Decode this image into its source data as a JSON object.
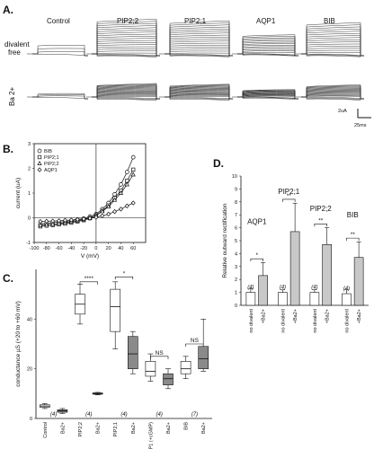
{
  "panel_a": {
    "label": "A.",
    "columns": [
      {
        "name": "Control",
        "amp": 0.25,
        "sweeps": 4
      },
      {
        "name": "PIP2;2",
        "amp": 1.0,
        "sweeps": 20
      },
      {
        "name": "PIP2;1",
        "amp": 0.95,
        "sweeps": 20
      },
      {
        "name": "AQP1",
        "amp": 0.55,
        "sweeps": 16
      },
      {
        "name": "BIB",
        "amp": 0.9,
        "sweeps": 18
      }
    ],
    "rows": [
      {
        "name": "divalent free",
        "line1": "divalent",
        "line2": "free",
        "scale": 1.0
      },
      {
        "name": "Ba2+",
        "label": "Ba 2+",
        "scale": 0.75
      }
    ],
    "scalebar": {
      "current": "2uA",
      "time": "25ms"
    }
  },
  "panel_b": {
    "label": "B.",
    "chart_data": {
      "type": "line",
      "xlabel": "V (mV)",
      "ylabel": "current (uA)",
      "xlim": [
        -100,
        80
      ],
      "ylim": [
        -1,
        3
      ],
      "xticks": [
        -100,
        -80,
        -60,
        -40,
        -20,
        0,
        20,
        40,
        60
      ],
      "yticks": [
        -1,
        0,
        1,
        2,
        3
      ],
      "x": [
        -90,
        -80,
        -70,
        -60,
        -50,
        -40,
        -30,
        -20,
        -10,
        0,
        10,
        20,
        30,
        40,
        50,
        60
      ],
      "series": [
        {
          "name": "BIB",
          "marker": "circle",
          "values": [
            -0.25,
            -0.22,
            -0.2,
            -0.18,
            -0.15,
            -0.12,
            -0.08,
            -0.03,
            0.05,
            0.15,
            0.35,
            0.6,
            0.95,
            1.35,
            1.85,
            2.45
          ]
        },
        {
          "name": "PIP2;1",
          "marker": "square",
          "values": [
            -0.35,
            -0.32,
            -0.3,
            -0.27,
            -0.24,
            -0.2,
            -0.15,
            -0.1,
            -0.02,
            0.1,
            0.28,
            0.5,
            0.8,
            1.1,
            1.5,
            1.95
          ]
        },
        {
          "name": "PIP2;2",
          "marker": "triangle",
          "values": [
            -0.3,
            -0.28,
            -0.26,
            -0.23,
            -0.2,
            -0.17,
            -0.12,
            -0.07,
            0.0,
            0.1,
            0.26,
            0.45,
            0.72,
            1.0,
            1.35,
            1.75
          ]
        },
        {
          "name": "AQP1",
          "marker": "diamond",
          "values": [
            -0.15,
            -0.14,
            -0.13,
            -0.12,
            -0.1,
            -0.09,
            -0.07,
            -0.05,
            -0.02,
            0.02,
            0.08,
            0.15,
            0.25,
            0.35,
            0.48,
            0.6
          ]
        }
      ],
      "legend": "top-left"
    }
  },
  "panel_c": {
    "label": "C.",
    "chart_data": {
      "type": "box",
      "ylabel": "conductance µS (+20 to +60 mV)",
      "ylim": [
        0,
        60
      ],
      "yticks": [
        0,
        20,
        40
      ],
      "groups": [
        {
          "label": "Control",
          "fill": "white",
          "min": 4,
          "q1": 4.5,
          "median": 5,
          "q3": 5.5,
          "max": 6
        },
        {
          "label": "Ba2+",
          "fill": "gray",
          "min": 2,
          "q1": 2.5,
          "median": 3,
          "q3": 3.5,
          "max": 4
        },
        {
          "label": "PIP2;2",
          "fill": "white",
          "min": 38,
          "q1": 42,
          "median": 46,
          "q3": 50,
          "max": 54
        },
        {
          "label": "Ba2+",
          "fill": "gray",
          "min": 9.5,
          "q1": 9.8,
          "median": 10,
          "q3": 10.3,
          "max": 10.5
        },
        {
          "label": "PIP2;1",
          "fill": "white",
          "min": 28,
          "q1": 35,
          "median": 45,
          "q3": 52,
          "max": 55
        },
        {
          "label": "Ba2+",
          "fill": "gray",
          "min": 18,
          "q1": 20,
          "median": 26,
          "q3": 33,
          "max": 35
        },
        {
          "label": "AQP1 (+cGMP)",
          "fill": "white",
          "min": 15,
          "q1": 17,
          "median": 19,
          "q3": 23,
          "max": 26
        },
        {
          "label": "Ba2+",
          "fill": "gray",
          "min": 12,
          "q1": 13.5,
          "median": 16,
          "q3": 18,
          "max": 20
        },
        {
          "label": "BIB",
          "fill": "white",
          "min": 16,
          "q1": 18,
          "median": 20,
          "q3": 23,
          "max": 25
        },
        {
          "label": "Ba2+",
          "fill": "gray",
          "min": 19,
          "q1": 20,
          "median": 24,
          "q3": 29,
          "max": 40
        }
      ],
      "n_labels": [
        {
          "text": "(4)",
          "group_index": 0.5
        },
        {
          "text": "(4)",
          "group_index": 2.5
        },
        {
          "text": "(4)",
          "group_index": 4.5
        },
        {
          "text": "(4)",
          "group_index": 6.5
        },
        {
          "text": "(7)",
          "group_index": 8.5
        }
      ],
      "significance": [
        {
          "from": 2,
          "to": 3,
          "text": "****",
          "y": 55
        },
        {
          "from": 4,
          "to": 5,
          "text": "*",
          "y": 57
        },
        {
          "from": 6,
          "to": 7,
          "text": "NS",
          "y": 25
        },
        {
          "from": 8,
          "to": 9,
          "text": "NS",
          "y": 30
        }
      ]
    }
  },
  "panel_d": {
    "label": "D.",
    "chart_data": {
      "type": "bar",
      "ylabel": "Relative outward rectification",
      "ylim": [
        0,
        10
      ],
      "yticks": [
        0,
        1,
        2,
        3,
        4,
        5,
        6,
        7,
        8,
        9,
        10
      ],
      "bars": [
        {
          "label": "no divalent",
          "fill": "white",
          "value": 1.0,
          "err": 0.3
        },
        {
          "label": "+Ba2+",
          "fill": "gray",
          "value": 2.3,
          "err": 1.0
        },
        {
          "label": "no divalent",
          "fill": "white",
          "value": 1.0,
          "err": 0.2
        },
        {
          "label": "+Ba2+",
          "fill": "gray",
          "value": 5.7,
          "err": 2.2
        },
        {
          "label": "no divalent",
          "fill": "white",
          "value": 1.0,
          "err": 0.2
        },
        {
          "label": "+Ba2+",
          "fill": "gray",
          "value": 4.7,
          "err": 1.3
        },
        {
          "label": "no divalent",
          "fill": "white",
          "value": 0.9,
          "err": 0.3
        },
        {
          "label": "+Ba2+",
          "fill": "gray",
          "value": 3.7,
          "err": 1.2
        }
      ],
      "groups": [
        {
          "name": "AQP1",
          "bars": [
            0,
            1
          ],
          "sig": "*",
          "n": "(4)",
          "label_y": 6.3
        },
        {
          "name": "PIP2;1",
          "bars": [
            2,
            3
          ],
          "sig": "**",
          "n": "(4)",
          "label_y": 8.6
        },
        {
          "name": "PIP2;2",
          "bars": [
            4,
            5
          ],
          "sig": "**",
          "n": "(4)",
          "label_y": 7.3
        },
        {
          "name": "BIB",
          "bars": [
            6,
            7
          ],
          "sig": "**",
          "n": "(4)",
          "label_y": 6.8
        }
      ]
    }
  }
}
